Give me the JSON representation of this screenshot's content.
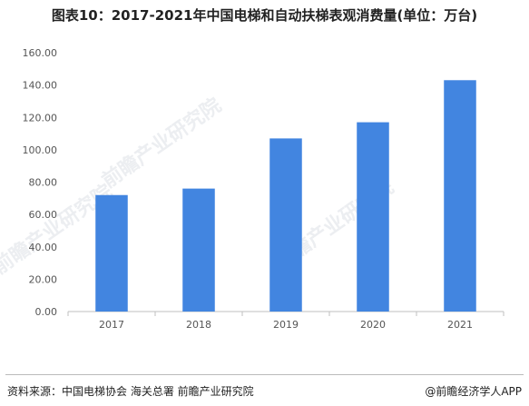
{
  "title": "图表10：2017-2021年中国电梯和自动扶梯表观消费量(单位：万台)",
  "watermark": "前瞻产业研究院",
  "source": "资料来源：中国电梯协会 海关总署 前瞻产业研究院",
  "brand": "@前瞻经济学人APP",
  "colors": {
    "bar": "#4285e0",
    "axis": "#bfbfbf",
    "tick_text": "#555555"
  },
  "chart_data": {
    "type": "bar",
    "title": "图表10：2017-2021年中国电梯和自动扶梯表观消费量(单位：万台)",
    "categories": [
      "2017",
      "2018",
      "2019",
      "2020",
      "2021"
    ],
    "values": [
      72,
      76,
      107,
      117,
      143
    ],
    "ylim": [
      0,
      160
    ],
    "yticks": [
      0,
      20,
      40,
      60,
      80,
      100,
      120,
      140,
      160
    ],
    "ytick_labels": [
      "0.00",
      "20.00",
      "40.00",
      "60.00",
      "80.00",
      "100.00",
      "120.00",
      "140.00",
      "160.00"
    ],
    "xlabel": "",
    "ylabel": "",
    "grid": false,
    "legend": "none"
  }
}
